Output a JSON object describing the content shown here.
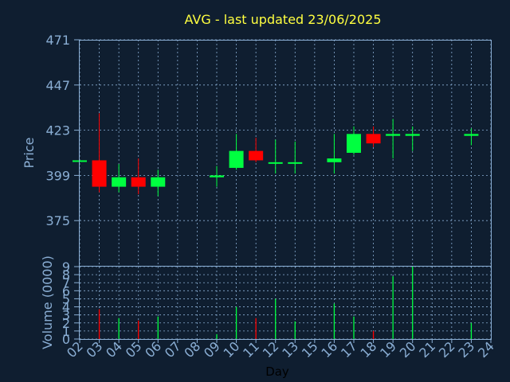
{
  "chart_data": {
    "title": "AVG - last updated 23/06/2025",
    "xlabel": "Day",
    "colors": {
      "background": "#0f1e30",
      "up": "#00ff40",
      "down": "#ff0000",
      "grid": "#8aaed4",
      "title": "#ffff40"
    },
    "x_tick_labels": [
      "02",
      "03",
      "04",
      "05",
      "06",
      "07",
      "08",
      "09",
      "10",
      "11",
      "12",
      "13",
      "15",
      "16",
      "17",
      "18",
      "19",
      "20",
      "21",
      "22",
      "23",
      "24"
    ],
    "price_panel": {
      "type": "candlestick",
      "ylabel": "Price",
      "ylim": [
        351,
        471
      ],
      "y_ticks": [
        "471",
        "447",
        "423",
        "399",
        "375"
      ],
      "grid": true,
      "candles": [
        {
          "day": "02",
          "open": 407,
          "high": 407,
          "low": 407,
          "close": 407
        },
        {
          "day": "03",
          "open": 407,
          "high": 432,
          "low": 390,
          "close": 393
        },
        {
          "day": "04",
          "open": 393,
          "high": 405,
          "low": 390,
          "close": 398
        },
        {
          "day": "05",
          "open": 398,
          "high": 408,
          "low": 389,
          "close": 393
        },
        {
          "day": "06",
          "open": 393,
          "high": 402,
          "low": 388,
          "close": 398
        },
        {
          "day": "09",
          "open": 398,
          "high": 404,
          "low": 393,
          "close": 399
        },
        {
          "day": "10",
          "open": 403,
          "high": 421,
          "low": 402,
          "close": 412
        },
        {
          "day": "11",
          "open": 412,
          "high": 419,
          "low": 406,
          "close": 407
        },
        {
          "day": "12",
          "open": 406,
          "high": 418,
          "low": 400,
          "close": 406
        },
        {
          "day": "13",
          "open": 406,
          "high": 417,
          "low": 400,
          "close": 406
        },
        {
          "day": "16",
          "open": 406,
          "high": 421,
          "low": 400,
          "close": 408
        },
        {
          "day": "17",
          "open": 411,
          "high": 425,
          "low": 410,
          "close": 421
        },
        {
          "day": "18",
          "open": 421,
          "high": 425,
          "low": 414,
          "close": 416
        },
        {
          "day": "19",
          "open": 420,
          "high": 429,
          "low": 408,
          "close": 421
        },
        {
          "day": "20",
          "open": 420,
          "high": 425,
          "low": 412,
          "close": 421
        },
        {
          "day": "23",
          "open": 420,
          "high": 424,
          "low": 415,
          "close": 421
        }
      ]
    },
    "volume_panel": {
      "type": "bar",
      "ylabel": "Volume (0000)",
      "ylim": [
        0,
        9
      ],
      "y_ticks": [
        "0",
        "1",
        "2",
        "3",
        "4",
        "5",
        "6",
        "7",
        "8",
        "9"
      ],
      "grid": true,
      "bars": [
        {
          "day": "03",
          "value": 3.7,
          "direction": "down"
        },
        {
          "day": "04",
          "value": 2.6,
          "direction": "up"
        },
        {
          "day": "05",
          "value": 2.3,
          "direction": "down"
        },
        {
          "day": "06",
          "value": 2.8,
          "direction": "up"
        },
        {
          "day": "09",
          "value": 0.6,
          "direction": "up"
        },
        {
          "day": "10",
          "value": 4.0,
          "direction": "up"
        },
        {
          "day": "11",
          "value": 2.6,
          "direction": "down"
        },
        {
          "day": "12",
          "value": 5.0,
          "direction": "up"
        },
        {
          "day": "13",
          "value": 2.2,
          "direction": "up"
        },
        {
          "day": "16",
          "value": 4.4,
          "direction": "up"
        },
        {
          "day": "17",
          "value": 2.8,
          "direction": "up"
        },
        {
          "day": "18",
          "value": 1.0,
          "direction": "down"
        },
        {
          "day": "19",
          "value": 7.8,
          "direction": "up"
        },
        {
          "day": "20",
          "value": 9.0,
          "direction": "up"
        },
        {
          "day": "23",
          "value": 2.0,
          "direction": "up"
        }
      ]
    }
  }
}
